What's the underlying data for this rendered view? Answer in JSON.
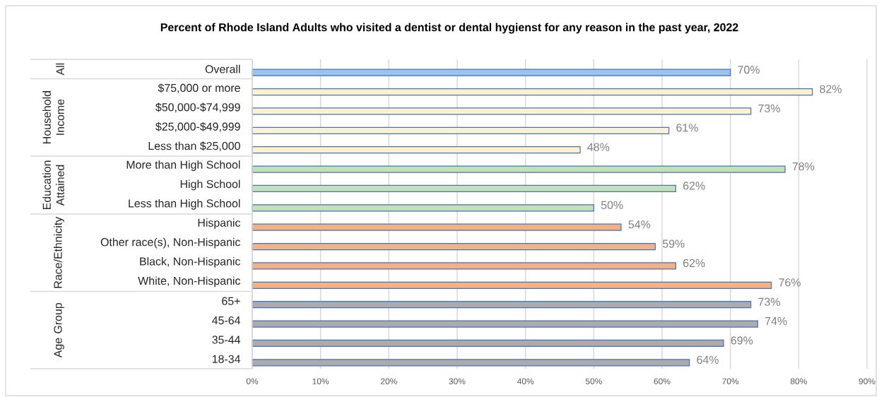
{
  "chart_data": {
    "type": "bar",
    "orientation": "horizontal",
    "title": "Percent of Rhode Island Adults who visited a dentist or dental hygienst for any reason in the past year, 2022",
    "categories": [
      "Overall",
      "$75,000 or more",
      "$50,000-$74,999",
      "$25,000-$49,999",
      "Less than $25,000",
      "More than High School",
      "High School",
      "Less than High School",
      "Hispanic",
      "Other race(s), Non-Hispanic",
      "Black, Non-Hispanic",
      "White, Non-Hispanic",
      "65+",
      "45-64",
      "35-44",
      "18-34"
    ],
    "values": [
      70,
      82,
      73,
      61,
      48,
      78,
      62,
      50,
      54,
      59,
      62,
      76,
      73,
      74,
      69,
      64
    ],
    "value_labels": [
      "70%",
      "82%",
      "73%",
      "61%",
      "48%",
      "78%",
      "62%",
      "50%",
      "54%",
      "59%",
      "62%",
      "76%",
      "73%",
      "74%",
      "69%",
      "64%"
    ],
    "colors": [
      "#9dc3e6",
      "#fff2cc",
      "#fff2cc",
      "#fff2cc",
      "#fff2cc",
      "#c5e0b4",
      "#c5e0b4",
      "#c5e0b4",
      "#f4b183",
      "#f4b183",
      "#f4b183",
      "#f4b183",
      "#aeaaaa",
      "#aeaaaa",
      "#aeaaaa",
      "#aeaaaa"
    ],
    "xlim": [
      0,
      90
    ],
    "xticks": [
      {
        "value": 0,
        "label": "0%"
      },
      {
        "value": 10,
        "label": "10%"
      },
      {
        "value": 20,
        "label": "20%"
      },
      {
        "value": 30,
        "label": "30%"
      },
      {
        "value": 40,
        "label": "40%"
      },
      {
        "value": 50,
        "label": "50%"
      },
      {
        "value": 60,
        "label": "60%"
      },
      {
        "value": 70,
        "label": "70%"
      },
      {
        "value": 80,
        "label": "80%"
      },
      {
        "value": 90,
        "label": "90%"
      }
    ],
    "grid": "x",
    "annotations": [
      "All",
      "Household Income",
      "Education Attained",
      "Race/Ethnicity",
      "Age Group"
    ]
  }
}
